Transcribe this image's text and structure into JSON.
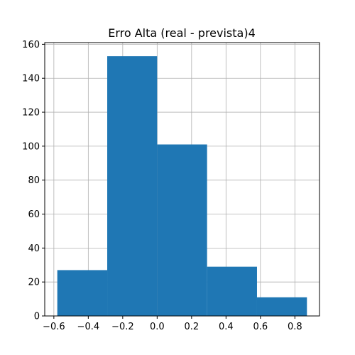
{
  "chart_data": {
    "type": "bar",
    "title": "Erro Alta (real - prevista)4",
    "xlabel": "",
    "ylabel": "",
    "bins": [
      {
        "x0": -0.58,
        "x1": -0.29,
        "count": 27
      },
      {
        "x0": -0.29,
        "x1": 0.0,
        "count": 153
      },
      {
        "x0": 0.0,
        "x1": 0.29,
        "count": 101
      },
      {
        "x0": 0.29,
        "x1": 0.58,
        "count": 29
      },
      {
        "x0": 0.58,
        "x1": 0.87,
        "count": 11
      }
    ],
    "xlim": [
      -0.653,
      0.943
    ],
    "ylim": [
      0,
      161
    ],
    "xticks": [
      -0.6,
      -0.4,
      -0.2,
      0.0,
      0.2,
      0.4,
      0.6,
      0.8
    ],
    "xtick_labels": [
      "−0.6",
      "−0.4",
      "−0.2",
      "0.0",
      "0.2",
      "0.4",
      "0.6",
      "0.8"
    ],
    "yticks": [
      0,
      20,
      40,
      60,
      80,
      100,
      120,
      140,
      160
    ],
    "ytick_labels": [
      "0",
      "20",
      "40",
      "60",
      "80",
      "100",
      "120",
      "140",
      "160"
    ],
    "grid": true,
    "color": "#1f77b4"
  }
}
